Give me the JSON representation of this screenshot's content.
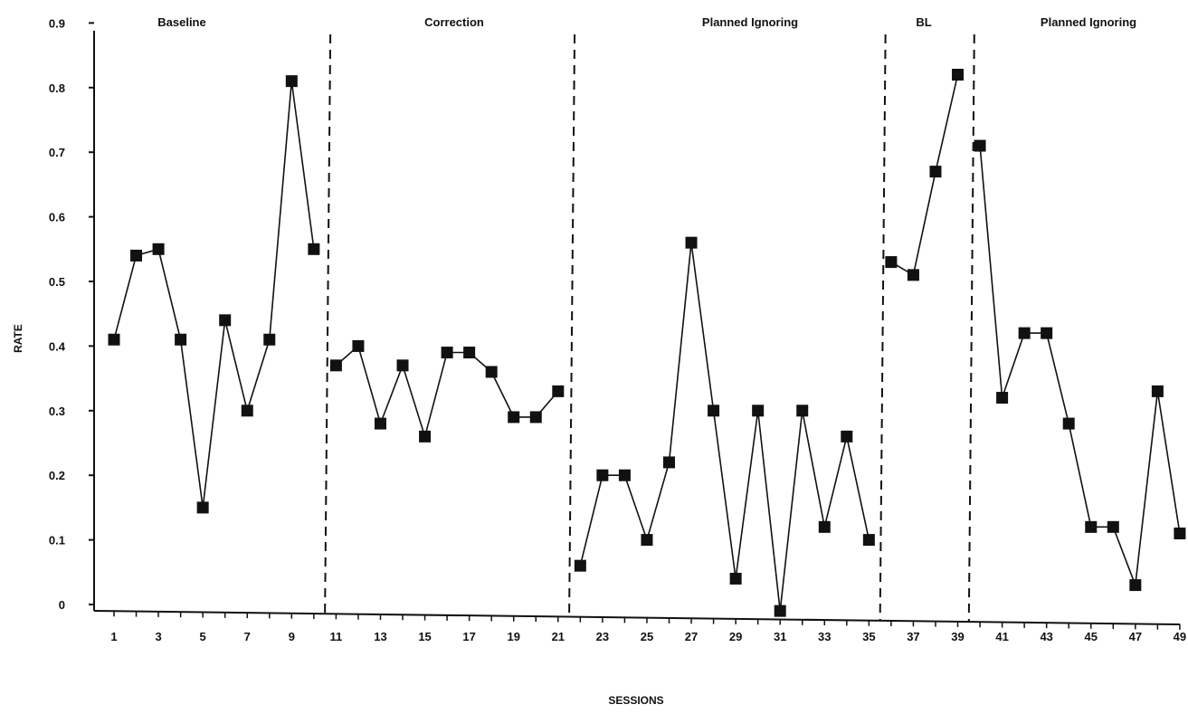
{
  "chart_data": {
    "type": "line",
    "xlabel": "SESSIONS",
    "ylabel": "RATE",
    "xlim": [
      0,
      49
    ],
    "ylim": [
      -0.1,
      0.9
    ],
    "x_ticks": [
      1,
      3,
      5,
      7,
      9,
      11,
      13,
      15,
      17,
      19,
      21,
      23,
      25,
      27,
      29,
      31,
      33,
      35,
      37,
      39,
      41,
      43,
      45,
      47,
      49
    ],
    "y_ticks": [
      0,
      0.1,
      0.2,
      0.3,
      0.4,
      0.5,
      0.6,
      0.7,
      0.8,
      0.9
    ],
    "y_tick_labels": [
      "0",
      "0.1",
      "0.2",
      "0.3",
      "0.4",
      "0.5",
      "0.6",
      "0.7",
      "0.8",
      "0.9"
    ],
    "grid": false,
    "legend": "none",
    "marker": "filled-square",
    "color": "#111111",
    "phases": [
      {
        "label": "Baseline",
        "start": 0.6,
        "end": 10.5
      },
      {
        "label": "Correction",
        "start": 10.5,
        "end": 21.5
      },
      {
        "label": "Planned Ignoring",
        "start": 21.5,
        "end": 35.5
      },
      {
        "label": "BL",
        "start": 35.5,
        "end": 39.5
      },
      {
        "label": "Planned Ignoring",
        "start": 39.5,
        "end": 49
      }
    ],
    "phase_dividers": [
      10.5,
      21.5,
      35.5,
      39.5
    ],
    "series": [
      {
        "x": [
          1,
          2,
          3,
          4,
          5,
          6,
          7,
          8,
          9,
          10
        ],
        "y": [
          0.41,
          0.54,
          0.55,
          0.41,
          0.15,
          0.44,
          0.3,
          0.41,
          0.81,
          0.55
        ]
      },
      {
        "x": [
          11,
          12,
          13,
          14,
          15,
          16,
          17,
          18,
          19,
          20,
          21
        ],
        "y": [
          0.37,
          0.4,
          0.28,
          0.37,
          0.26,
          0.39,
          0.39,
          0.36,
          0.29,
          0.29,
          0.33
        ]
      },
      {
        "x": [
          22,
          23,
          24,
          25,
          26,
          27,
          28,
          29,
          30,
          31,
          32,
          33,
          34,
          35
        ],
        "y": [
          0.06,
          0.2,
          0.2,
          0.1,
          0.22,
          0.56,
          0.3,
          0.04,
          0.3,
          -0.01,
          0.3,
          0.12,
          0.26,
          0.1
        ]
      },
      {
        "x": [
          36,
          37,
          38,
          39
        ],
        "y": [
          0.53,
          0.51,
          0.67,
          0.82
        ]
      },
      {
        "x": [
          40,
          41,
          42,
          43,
          44,
          45,
          46,
          47,
          48,
          49
        ],
        "y": [
          0.71,
          0.32,
          0.42,
          0.42,
          0.28,
          0.12,
          0.12,
          0.03,
          0.33,
          0.11
        ]
      }
    ]
  }
}
